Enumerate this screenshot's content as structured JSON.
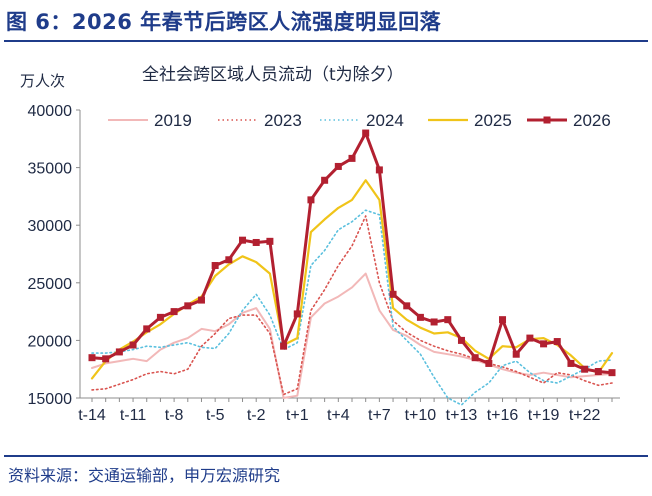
{
  "figure": {
    "title": "图 6：2026 年春节后跨区人流强度明显回落",
    "source": "资料来源：交通运输部，申万宏源研究"
  },
  "chart_data": {
    "type": "line",
    "title": "全社会跨区域人员流动（t为除夕）",
    "ylabel": "万人次",
    "xlabel": "",
    "ylim": [
      15000,
      40000
    ],
    "yticks": [
      15000,
      20000,
      25000,
      30000,
      35000,
      40000
    ],
    "x": [
      "t-14",
      "t-13",
      "t-12",
      "t-11",
      "t-10",
      "t-9",
      "t-8",
      "t-7",
      "t-6",
      "t-5",
      "t-4",
      "t-3",
      "t-2",
      "t-1",
      "t",
      "t+1",
      "t+2",
      "t+3",
      "t+4",
      "t+5",
      "t+6",
      "t+7",
      "t+8",
      "t+9",
      "t+10",
      "t+11",
      "t+12",
      "t+13",
      "t+14",
      "t+15",
      "t+16",
      "t+17",
      "t+18",
      "t+19",
      "t+20",
      "t+21",
      "t+22",
      "t+23",
      "t+24"
    ],
    "xtick_labels": [
      "t-14",
      "t-11",
      "t-8",
      "t-5",
      "t-2",
      "t+1",
      "t+4",
      "t+7",
      "t+10",
      "t+13",
      "t+16",
      "t+19",
      "t+22"
    ],
    "legend_position": "top",
    "series": [
      {
        "name": "2019",
        "color": "#f2b8b8",
        "style": "solid",
        "width": 2,
        "markers": false,
        "values": [
          17600,
          18000,
          18200,
          18400,
          18200,
          19200,
          19800,
          20200,
          21000,
          20800,
          21400,
          22400,
          22800,
          21000,
          15000,
          15200,
          22000,
          23200,
          23800,
          24600,
          25800,
          22600,
          20900,
          20400,
          19600,
          19000,
          18800,
          18600,
          18300,
          17900,
          17500,
          17200,
          17000,
          17200,
          17000,
          16800,
          16900,
          17000,
          17100
        ]
      },
      {
        "name": "2023",
        "color": "#d9534f",
        "style": "dotted",
        "width": 1.6,
        "markers": false,
        "values": [
          15700,
          15800,
          16200,
          16600,
          17100,
          17300,
          17100,
          17500,
          19500,
          20600,
          21900,
          22200,
          22200,
          20600,
          15300,
          15800,
          22600,
          24400,
          26500,
          28200,
          30800,
          25000,
          21700,
          20700,
          20000,
          19500,
          19100,
          18800,
          18400,
          18000,
          17700,
          17300,
          16800,
          16300,
          17200,
          17000,
          16500,
          16100,
          16300
        ]
      },
      {
        "name": "2024",
        "color": "#5bc0de",
        "style": "dotted",
        "width": 1.6,
        "markers": false,
        "values": [
          18900,
          18900,
          19000,
          19200,
          19500,
          19400,
          19600,
          19800,
          19400,
          19300,
          20600,
          22600,
          24000,
          22200,
          19200,
          19800,
          26500,
          27800,
          29600,
          30300,
          31300,
          30900,
          21200,
          20000,
          18800,
          16800,
          15000,
          14400,
          15500,
          16300,
          17800,
          18200,
          17200,
          16500,
          16300,
          16900,
          17500,
          18200,
          18300
        ]
      },
      {
        "name": "2025",
        "color": "#f0c419",
        "style": "solid",
        "width": 2.2,
        "markers": false,
        "values": [
          16700,
          18200,
          19200,
          19900,
          20700,
          21400,
          22300,
          23100,
          23800,
          25600,
          26600,
          27300,
          26800,
          25800,
          19600,
          20200,
          29400,
          30500,
          31500,
          32200,
          33900,
          32200,
          22800,
          21800,
          21100,
          20600,
          20700,
          20200,
          19100,
          18400,
          19500,
          19400,
          20100,
          20200,
          19600,
          18700,
          17600,
          17200,
          18900
        ]
      },
      {
        "name": "2026",
        "color": "#b22030",
        "style": "solid",
        "width": 3,
        "markers": true,
        "values": [
          18500,
          18400,
          19000,
          19600,
          21000,
          22000,
          22500,
          23000,
          23500,
          26500,
          27000,
          28700,
          28500,
          28600,
          19500,
          22300,
          32200,
          33900,
          35100,
          35800,
          38000,
          34800,
          24000,
          23000,
          22000,
          21600,
          21800,
          20000,
          18500,
          18000,
          21800,
          18800,
          20200,
          19700,
          19900,
          18000,
          17500,
          17300,
          17200
        ]
      }
    ]
  }
}
